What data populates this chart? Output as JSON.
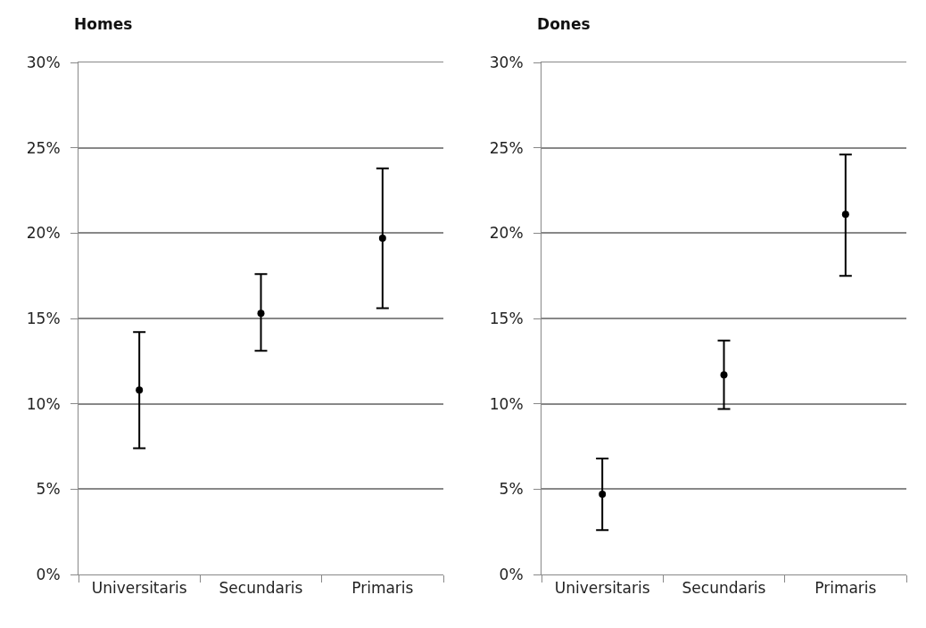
{
  "chart_data": [
    {
      "type": "scatter",
      "title": "Homes",
      "categories": [
        "Universitaris",
        "Secundaris",
        "Primaris"
      ],
      "values": [
        10.8,
        15.3,
        19.7
      ],
      "errors": [
        [
          7.4,
          14.2
        ],
        [
          13.1,
          17.6
        ],
        [
          15.6,
          23.8
        ]
      ],
      "color": "#000000",
      "marker": "circle",
      "ylim": [
        0,
        30
      ],
      "yticks": [
        {
          "value": 0,
          "label": "0%"
        },
        {
          "value": 5,
          "label": "5%"
        },
        {
          "value": 10,
          "label": "10%"
        },
        {
          "value": 15,
          "label": "15%"
        },
        {
          "value": 20,
          "label": "20%"
        },
        {
          "value": 25,
          "label": "25%"
        },
        {
          "value": 30,
          "label": "30%"
        }
      ],
      "grid": "y"
    },
    {
      "type": "scatter",
      "title": "Dones",
      "categories": [
        "Universitaris",
        "Secundaris",
        "Primaris"
      ],
      "values": [
        4.7,
        11.7,
        21.1
      ],
      "errors": [
        [
          2.6,
          6.8
        ],
        [
          9.7,
          13.7
        ],
        [
          17.5,
          24.6
        ]
      ],
      "color": "#000000",
      "marker": "circle",
      "ylim": [
        0,
        30
      ],
      "yticks": [
        {
          "value": 0,
          "label": "0%"
        },
        {
          "value": 5,
          "label": "5%"
        },
        {
          "value": 10,
          "label": "10%"
        },
        {
          "value": 15,
          "label": "15%"
        },
        {
          "value": 20,
          "label": "20%"
        },
        {
          "value": 25,
          "label": "25%"
        },
        {
          "value": 30,
          "label": "30%"
        }
      ],
      "grid": "y"
    }
  ]
}
